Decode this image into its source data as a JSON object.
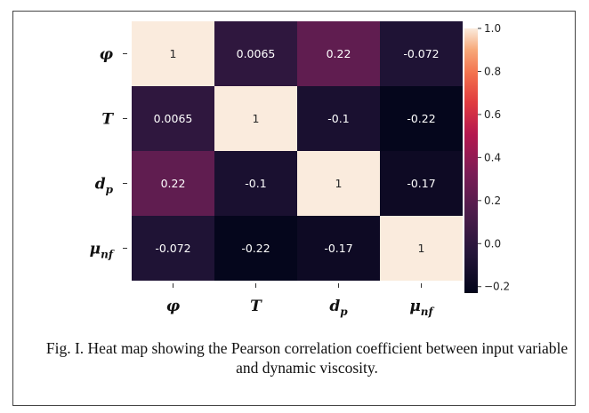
{
  "caption": "Fig. I. Heat map showing the Pearson correlation coefficient between input variable and dynamic viscosity.",
  "chart_data": {
    "type": "heatmap",
    "title": "",
    "row_labels": [
      {
        "base": "φ",
        "sub": ""
      },
      {
        "base": "T",
        "sub": ""
      },
      {
        "base": "d",
        "sub": "p"
      },
      {
        "base": "μ",
        "sub": "nf"
      }
    ],
    "col_labels": [
      {
        "base": "φ",
        "sub": ""
      },
      {
        "base": "T",
        "sub": ""
      },
      {
        "base": "d",
        "sub": "p"
      },
      {
        "base": "μ",
        "sub": "nf"
      }
    ],
    "values": [
      [
        1,
        0.0065,
        0.22,
        -0.072
      ],
      [
        0.0065,
        1,
        -0.1,
        -0.22
      ],
      [
        0.22,
        -0.1,
        1,
        -0.17
      ],
      [
        -0.072,
        -0.22,
        -0.17,
        1
      ]
    ],
    "cell_labels": [
      [
        "1",
        "0.0065",
        "0.22",
        "-0.072"
      ],
      [
        "0.0065",
        "1",
        "-0.1",
        "-0.22"
      ],
      [
        "0.22",
        "-0.1",
        "1",
        "-0.17"
      ],
      [
        "-0.072",
        "-0.22",
        "-0.17",
        "1"
      ]
    ],
    "colormap": "rocket",
    "colorbar": {
      "min": -0.23,
      "max": 1.0,
      "ticks": [
        1.0,
        0.8,
        0.6,
        0.4,
        0.2,
        0.0,
        -0.2
      ],
      "tick_labels": [
        "1.0",
        "0.8",
        "0.6",
        "0.4",
        "0.2",
        "0.0",
        "−0.2"
      ]
    }
  }
}
